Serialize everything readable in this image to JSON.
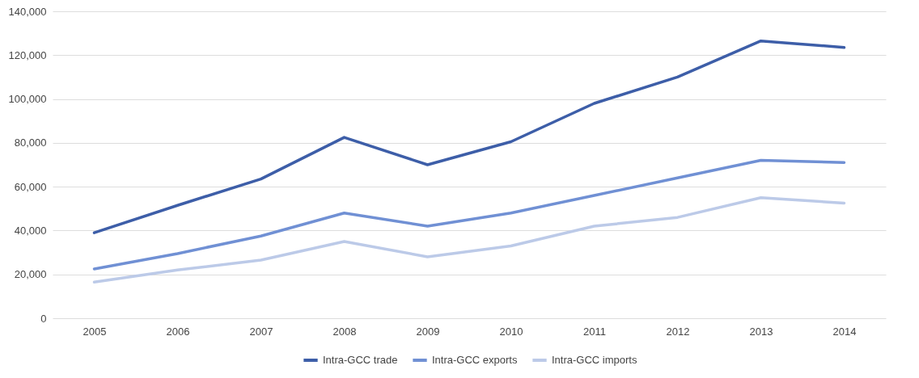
{
  "chart_data": {
    "type": "line",
    "categories": [
      "2005",
      "2006",
      "2007",
      "2008",
      "2009",
      "2010",
      "2011",
      "2012",
      "2013",
      "2014"
    ],
    "series": [
      {
        "name": "Intra-GCC trade",
        "color": "#3d5ea8",
        "values": [
          39000,
          51500,
          63500,
          82500,
          70000,
          80500,
          98000,
          110000,
          126500,
          123500
        ]
      },
      {
        "name": "Intra-GCC exports",
        "color": "#7090d4",
        "values": [
          22500,
          29500,
          37500,
          48000,
          42000,
          48000,
          56000,
          64000,
          72000,
          71000
        ]
      },
      {
        "name": "Intra-GCC imports",
        "color": "#bccae8",
        "values": [
          16500,
          22000,
          26500,
          35000,
          28000,
          33000,
          42000,
          46000,
          55000,
          52500
        ]
      }
    ],
    "ylim": [
      0,
      140000
    ],
    "yticks": [
      0,
      {
        "value": 20000,
        "label": "20,000"
      },
      {
        "value": 40000,
        "label": "40,000"
      },
      {
        "value": 60000,
        "label": "60,000"
      },
      {
        "value": 80000,
        "label": "80,000"
      },
      {
        "value": 100000,
        "label": "100,000"
      },
      {
        "value": 120000,
        "label": "120,000"
      },
      {
        "value": 140000,
        "label": "140,000"
      }
    ],
    "grid": "y",
    "legend": "bottom"
  }
}
